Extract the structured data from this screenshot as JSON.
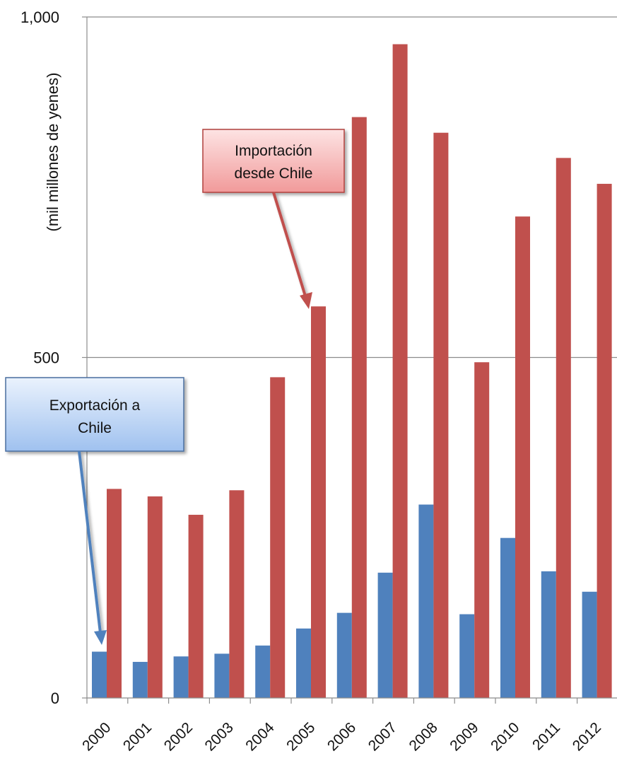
{
  "chart_data": {
    "type": "bar",
    "title": "",
    "xlabel": "",
    "ylabel": "(mil millones de yenes)",
    "ylim": [
      0,
      1000
    ],
    "y_ticks": [
      "0",
      "500",
      "1,000"
    ],
    "y_tick_values": [
      0,
      500,
      1000
    ],
    "grid": "horizontal",
    "categories": [
      "2000",
      "2001",
      "2002",
      "2003",
      "2004",
      "2005",
      "2006",
      "2007",
      "2008",
      "2009",
      "2010",
      "2011",
      "2012"
    ],
    "series": [
      {
        "name": "Exportación a Chile",
        "color": "#4f81bd",
        "values": [
          68,
          53,
          61,
          65,
          77,
          102,
          125,
          184,
          284,
          123,
          235,
          186,
          156
        ]
      },
      {
        "name": "Importación desde Chile",
        "color": "#c0504d",
        "values": [
          307,
          296,
          269,
          305,
          471,
          575,
          853,
          960,
          830,
          493,
          707,
          793,
          755
        ]
      }
    ],
    "annotations": [
      {
        "lines": [
          "Importación",
          "desde Chile"
        ],
        "series": "Importación desde Chile",
        "points_to": "2005"
      },
      {
        "lines": [
          "Exportación a",
          "Chile"
        ],
        "series": "Exportación a Chile",
        "points_to": "2000"
      }
    ]
  }
}
